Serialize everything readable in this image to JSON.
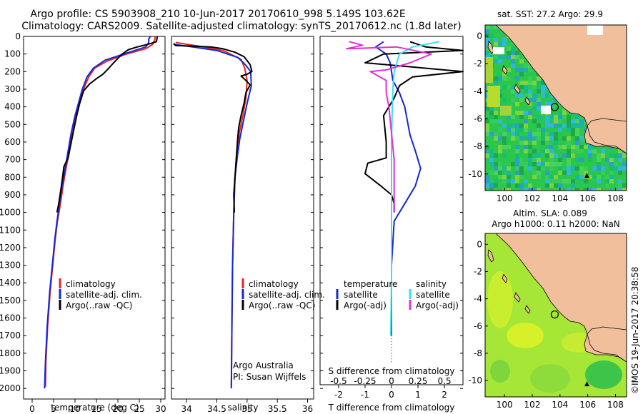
{
  "title": {
    "line1": "Argo profile: CS 5903908_210 10-Jun-2017 20170610_998 5.149S 103.62E",
    "line2": "Climatology: CARS2009. Satellite-adjusted climatology: synTS_20170612.nc (1.8d later)"
  },
  "watermark": "©IMOS 19-Jun-2017 20:38:58",
  "colors": {
    "climatology": "#e8231b",
    "satellite": "#1426d8",
    "argo": "#000000",
    "sat_s": "#38e0f0",
    "argo_s": "#e030d8",
    "land": "#f2bf9c",
    "sst_ocean": "#2bc64e",
    "sla_ocean": "#9be43c"
  },
  "chart_data": [
    {
      "id": "temperature",
      "type": "line",
      "xlabel": "temperature (deg C)",
      "ylabel": "",
      "xlim": [
        -2,
        31
      ],
      "ylim": [
        2060,
        0
      ],
      "xticks": [
        0,
        5,
        10,
        15,
        20,
        25,
        30
      ],
      "yticks": [
        0,
        100,
        200,
        300,
        400,
        500,
        600,
        700,
        800,
        900,
        1000,
        1100,
        1200,
        1300,
        1400,
        1500,
        1600,
        1700,
        1800,
        1900,
        2000
      ],
      "legend": {
        "position": "lower-left",
        "entries": [
          "climatology",
          "satellite-adj. clim.",
          "Argo(..raw -QC)"
        ]
      },
      "series": [
        {
          "name": "climatology",
          "color": "#e8231b",
          "points": [
            [
              28.7,
              0
            ],
            [
              28.6,
              20
            ],
            [
              28.1,
              45
            ],
            [
              26.5,
              70
            ],
            [
              22,
              100
            ],
            [
              17.5,
              140
            ],
            [
              14.6,
              180
            ],
            [
              13.2,
              230
            ],
            [
              12,
              300
            ],
            [
              11,
              380
            ],
            [
              10.3,
              450
            ],
            [
              9.4,
              550
            ],
            [
              8.7,
              650
            ],
            [
              7.9,
              750
            ],
            [
              7.2,
              850
            ],
            [
              6.6,
              950
            ],
            [
              5.9,
              1050
            ],
            [
              5.4,
              1150
            ],
            [
              5.0,
              1250
            ],
            [
              4.6,
              1350
            ],
            [
              4.2,
              1450
            ],
            [
              3.9,
              1550
            ],
            [
              3.6,
              1650
            ],
            [
              3.4,
              1750
            ],
            [
              3.2,
              1850
            ],
            [
              3.1,
              1990
            ]
          ]
        },
        {
          "name": "satellite-adj. clim.",
          "color": "#1426d8",
          "points": [
            [
              27.6,
              0
            ],
            [
              27.2,
              15
            ],
            [
              27.2,
              35
            ],
            [
              26.5,
              60
            ],
            [
              22,
              95
            ],
            [
              17,
              135
            ],
            [
              14.3,
              180
            ],
            [
              12.8,
              230
            ],
            [
              11.7,
              300
            ],
            [
              10.8,
              380
            ],
            [
              10.0,
              450
            ],
            [
              9.1,
              550
            ],
            [
              8.4,
              650
            ],
            [
              7.7,
              750
            ],
            [
              7.0,
              850
            ],
            [
              6.4,
              950
            ],
            [
              5.8,
              1050
            ],
            [
              5.3,
              1150
            ],
            [
              4.9,
              1250
            ],
            [
              4.5,
              1350
            ],
            [
              4.1,
              1450
            ],
            [
              3.8,
              1550
            ],
            [
              3.5,
              1650
            ],
            [
              3.3,
              1750
            ],
            [
              3.1,
              1850
            ],
            [
              2.9,
              2000
            ]
          ]
        },
        {
          "name": "Argo(..raw -QC)",
          "color": "#000000",
          "points": [
            [
              29.2,
              0
            ],
            [
              29.0,
              30
            ],
            [
              27,
              45
            ],
            [
              24.5,
              60
            ],
            [
              22.5,
              75
            ],
            [
              21,
              100
            ],
            [
              20,
              125
            ],
            [
              19,
              150
            ],
            [
              17.5,
              190
            ],
            [
              16.5,
              215
            ],
            [
              15,
              240
            ],
            [
              13.4,
              270
            ],
            [
              12.0,
              310
            ],
            [
              11.1,
              380
            ],
            [
              10.4,
              450
            ],
            [
              9.8,
              520
            ],
            [
              9.3,
              580
            ],
            [
              8.8,
              640
            ],
            [
              8.4,
              690
            ],
            [
              7.4,
              740
            ],
            [
              7.1,
              800
            ],
            [
              6.7,
              870
            ],
            [
              6.2,
              950
            ],
            [
              5.8,
              1000
            ]
          ]
        }
      ]
    },
    {
      "id": "salinity",
      "type": "line",
      "xlabel": "salinity",
      "ylabel": "",
      "xlim": [
        33.75,
        36.1
      ],
      "ylim": [
        2060,
        0
      ],
      "xticks": [
        34,
        34.5,
        35,
        35.5,
        36
      ],
      "legend": {
        "position": "lower-right",
        "entries": [
          "climatology",
          "satellite-adj. clim.",
          "Argo(..raw -QC)"
        ]
      },
      "annotation": [
        "Argo Australia",
        "PI: Susan Wijffels"
      ],
      "series": [
        {
          "name": "climatology",
          "color": "#e8231b",
          "points": [
            [
              33.82,
              35
            ],
            [
              34.2,
              55
            ],
            [
              34.6,
              80
            ],
            [
              34.9,
              130
            ],
            [
              34.96,
              180
            ],
            [
              35.0,
              250
            ],
            [
              34.98,
              350
            ],
            [
              34.93,
              450
            ],
            [
              34.87,
              550
            ],
            [
              34.83,
              650
            ],
            [
              34.8,
              800
            ],
            [
              34.78,
              1000
            ],
            [
              34.76,
              1300
            ],
            [
              34.75,
              1600
            ],
            [
              34.74,
              1990
            ]
          ]
        },
        {
          "name": "satellite-adj. clim.",
          "color": "#1426d8",
          "points": [
            [
              33.78,
              45
            ],
            [
              34.1,
              60
            ],
            [
              34.5,
              80
            ],
            [
              34.85,
              120
            ],
            [
              34.97,
              160
            ],
            [
              35.06,
              200
            ],
            [
              35.07,
              280
            ],
            [
              35.0,
              380
            ],
            [
              34.94,
              480
            ],
            [
              34.88,
              580
            ],
            [
              34.84,
              680
            ],
            [
              34.8,
              800
            ],
            [
              34.78,
              1000
            ],
            [
              34.76,
              1300
            ],
            [
              34.75,
              1600
            ],
            [
              34.74,
              2000
            ]
          ]
        },
        {
          "name": "Argo(..raw -QC)",
          "color": "#000000",
          "points": [
            [
              33.79,
              40
            ],
            [
              33.82,
              52
            ],
            [
              34.1,
              55
            ],
            [
              34.4,
              60
            ],
            [
              34.6,
              70
            ],
            [
              34.8,
              90
            ],
            [
              34.95,
              115
            ],
            [
              35.05,
              160
            ],
            [
              35.08,
              200
            ],
            [
              35.0,
              215
            ],
            [
              34.9,
              225
            ],
            [
              34.95,
              240
            ],
            [
              35.05,
              275
            ],
            [
              34.98,
              320
            ],
            [
              34.95,
              380
            ],
            [
              34.9,
              450
            ],
            [
              34.86,
              520
            ],
            [
              34.84,
              600
            ],
            [
              34.82,
              700
            ],
            [
              34.8,
              800
            ],
            [
              34.78,
              900
            ],
            [
              34.79,
              1000
            ]
          ]
        }
      ]
    },
    {
      "id": "difference",
      "type": "line",
      "xlabel": "T difference from climatology",
      "xlabel_top": "S difference from climatology",
      "xlim": [
        -2.7,
        2.7
      ],
      "ylim": [
        2060,
        0
      ],
      "xticks": [
        -2,
        -1,
        0,
        1,
        2
      ],
      "xticks_top_labels": [
        "-0.5",
        "-0.25",
        "0",
        "0.25",
        "0.5"
      ],
      "legend": {
        "position": "lower-center",
        "temperature_title": "temperature",
        "salinity_title": "salinity",
        "entries": [
          "satellite",
          "Argo(-adj)",
          "satellite",
          "Argo(-adj)"
        ]
      },
      "series": [
        {
          "name": "temperature satellite",
          "color": "#1426d8",
          "points": [
            [
              -0.3,
              30
            ],
            [
              -0.6,
              60
            ],
            [
              -0.2,
              100
            ],
            [
              -0.05,
              150
            ],
            [
              0.05,
              250
            ],
            [
              0.3,
              320
            ],
            [
              0.5,
              400
            ],
            [
              0.6,
              480
            ],
            [
              0.7,
              560
            ],
            [
              0.9,
              650
            ],
            [
              1.1,
              750
            ],
            [
              0.9,
              850
            ],
            [
              0.5,
              950
            ],
            [
              0.1,
              1050
            ],
            [
              0,
              1300
            ],
            [
              0,
              1700
            ]
          ]
        },
        {
          "name": "temperature Argo(-adj)",
          "color": "#000000",
          "points": [
            [
              0.7,
              30
            ],
            [
              1.3,
              60
            ],
            [
              2.7,
              80
            ],
            [
              -0.3,
              100
            ],
            [
              -1.0,
              150
            ],
            [
              0.5,
              170
            ],
            [
              2.7,
              200
            ],
            [
              0.8,
              230
            ],
            [
              0.3,
              280
            ],
            [
              0.1,
              350
            ],
            [
              -0.3,
              450
            ],
            [
              -0.2,
              600
            ],
            [
              -0.2,
              690
            ],
            [
              -0.9,
              720
            ],
            [
              -1.0,
              780
            ],
            [
              -0.4,
              850
            ],
            [
              0.0,
              900
            ],
            [
              0.1,
              950
            ],
            [
              0.1,
              1000
            ]
          ]
        },
        {
          "name": "salinity satellite",
          "color": "#38e0f0",
          "points": [
            [
              1.8,
              30
            ],
            [
              0.8,
              60
            ],
            [
              0.3,
              100
            ],
            [
              0.1,
              200
            ],
            [
              0.05,
              300
            ],
            [
              0.03,
              400
            ],
            [
              0.0,
              600
            ],
            [
              0.0,
              1000
            ],
            [
              0.0,
              1400
            ],
            [
              -0.03,
              1700
            ]
          ]
        },
        {
          "name": "salinity Argo(-adj)",
          "color": "#e030d8",
          "points": [
            [
              -1.6,
              30
            ],
            [
              -1.1,
              50
            ],
            [
              -1.7,
              70
            ],
            [
              0.2,
              60
            ],
            [
              1.5,
              100
            ],
            [
              0.7,
              150
            ],
            [
              -0.2,
              190
            ],
            [
              -0.8,
              200
            ],
            [
              -0.2,
              250
            ],
            [
              -0.2,
              320
            ],
            [
              -0.1,
              400
            ],
            [
              0.1,
              700
            ],
            [
              0.1,
              1000
            ]
          ]
        }
      ]
    }
  ],
  "maps": [
    {
      "id": "sst-map",
      "title": "sat. SST: 27.2  Argo: 29.9",
      "subtitle": "",
      "xlim": [
        98.6,
        108.8
      ],
      "ylim": [
        -11.2,
        0.8
      ],
      "xticks": [
        100,
        102,
        104,
        106,
        108
      ],
      "xtick_labels": [
        "100",
        "102",
        "104",
        "106",
        "108"
      ],
      "yticks": [
        0,
        -2,
        -4,
        -6,
        -8,
        -10
      ],
      "ytick_labels": [
        "0",
        "-2",
        "-4",
        "-6",
        "-8",
        "-10"
      ],
      "float_position": [
        103.62,
        -5.15
      ]
    },
    {
      "id": "sla-map",
      "title": "Altim. SLA: 0.089",
      "subtitle": "Argo h1000: 0.11  h2000: NaN",
      "xlim": [
        98.6,
        108.8
      ],
      "ylim": [
        -11.2,
        0.8
      ],
      "xticks": [
        100,
        102,
        104,
        106,
        108
      ],
      "xtick_labels": [
        "100",
        "102",
        "104",
        "106",
        "108"
      ],
      "yticks": [
        0,
        -2,
        -4,
        -6,
        -8,
        -10
      ],
      "ytick_labels": [
        "0",
        "-2",
        "-4",
        "-6",
        "-8",
        "-10"
      ],
      "float_position": [
        103.62,
        -5.15
      ]
    }
  ]
}
